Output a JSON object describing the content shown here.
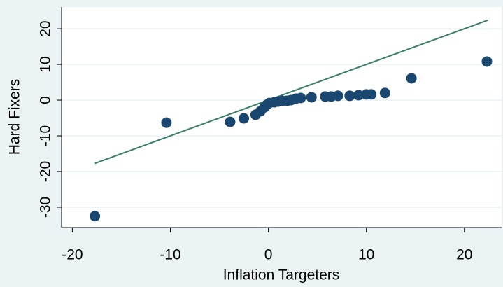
{
  "chart_data": {
    "type": "scatter",
    "xlabel": "Inflation Targeters",
    "ylabel": "Hard Fixers",
    "series": [
      {
        "name": "Hard Fixers",
        "color": "#1a476f",
        "x": [
          -17.7,
          -10.4,
          -3.9,
          -2.5,
          -1.3,
          -0.8,
          -0.4,
          -0.2,
          0.1,
          0.6,
          1.0,
          1.4,
          1.9,
          2.3,
          2.8,
          3.3,
          4.4,
          5.8,
          6.4,
          7.1,
          8.3,
          9.2,
          10.0,
          10.5,
          11.9,
          14.6,
          22.3
        ],
        "values": [
          -32.5,
          -6.3,
          -6.1,
          -5.1,
          -4.1,
          -3.1,
          -2.0,
          -1.4,
          -0.8,
          -0.6,
          -0.4,
          -0.2,
          -0.2,
          0,
          0.4,
          0.6,
          0.8,
          1.0,
          1.0,
          1.2,
          1.2,
          1.4,
          1.6,
          1.6,
          2.0,
          6.1,
          10.8
        ]
      }
    ],
    "reference_line": {
      "color": "#3a7d68",
      "x": [
        -17.7,
        22.4
      ],
      "values": [
        -17.7,
        22.4
      ]
    },
    "xlim": [
      -21.1,
      23.8
    ],
    "xticks": [
      -20,
      -10,
      0,
      10,
      20
    ],
    "ylim": [
      -35.7,
      26.1
    ],
    "yticks": [
      -30,
      -20,
      -10,
      0,
      10,
      20
    ],
    "grid": true
  }
}
